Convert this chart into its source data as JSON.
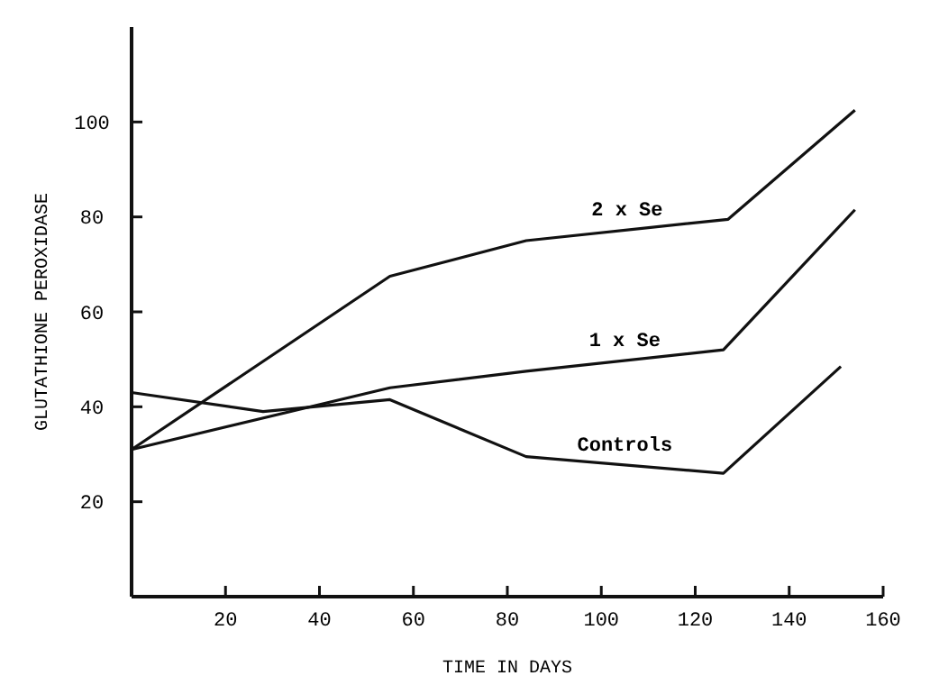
{
  "chart_data": {
    "type": "line",
    "xlabel": "TIME IN DAYS",
    "ylabel": "GLUTATHIONE PEROXIDASE",
    "xlim": [
      0,
      160
    ],
    "ylim": [
      0,
      120
    ],
    "xticks": [
      20,
      40,
      60,
      80,
      100,
      120,
      140,
      160
    ],
    "yticks": [
      20,
      40,
      60,
      80,
      100
    ],
    "grid": false,
    "marker": "none",
    "line_style": "solid",
    "series": [
      {
        "name": "2 x Se",
        "color": "#111111",
        "x": [
          0,
          55,
          84,
          127,
          154
        ],
        "values": [
          31,
          67.5,
          75,
          79.5,
          102.5
        ]
      },
      {
        "name": "1 x Se",
        "color": "#111111",
        "x": [
          0,
          55,
          84,
          126,
          154
        ],
        "values": [
          31,
          44,
          47.5,
          52,
          81.5
        ]
      },
      {
        "name": "Controls",
        "color": "#111111",
        "x": [
          0,
          28,
          55,
          84,
          126,
          151
        ],
        "values": [
          43,
          39,
          41.5,
          29.5,
          26,
          48.5
        ]
      }
    ]
  }
}
